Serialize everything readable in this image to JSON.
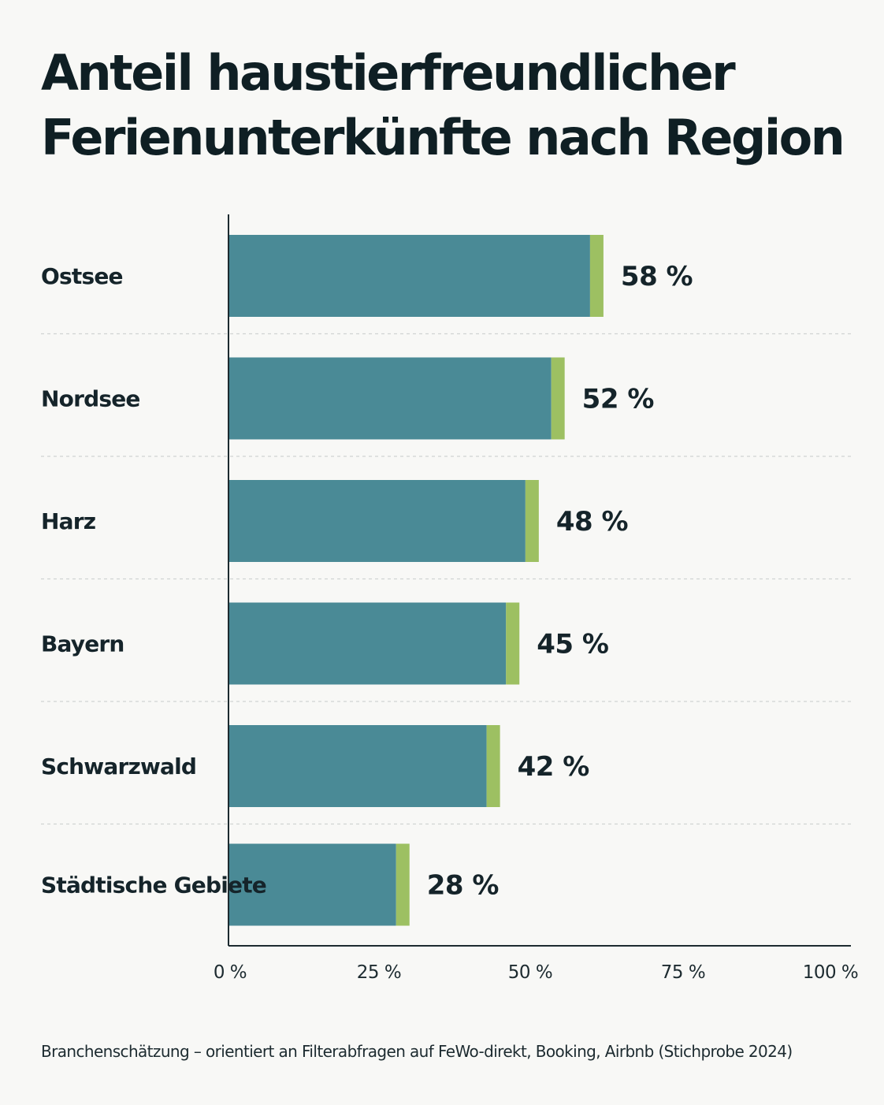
{
  "chart_data": {
    "type": "bar",
    "orientation": "horizontal",
    "title": "Anteil haustierfreundlicher Ferienunterkünfte nach Region",
    "categories": [
      "Ostsee",
      "Nordsee",
      "Harz",
      "Bayern",
      "Schwarzwald",
      "Städtische Gebiete"
    ],
    "values": [
      58,
      52,
      48,
      45,
      42,
      28
    ],
    "value_labels": [
      "58 %",
      "52 %",
      "48 %",
      "45 %",
      "42 %",
      "28 %"
    ],
    "xlim": [
      0,
      100
    ],
    "x_ticks": [
      0,
      25,
      50,
      75,
      100
    ],
    "x_tick_labels": [
      "0 %",
      "25 %",
      "50 %",
      "75 %",
      "100 %"
    ],
    "xlabel": "",
    "ylabel": "",
    "grid": false,
    "legend": "none",
    "colors": {
      "bar": "#4a8a96",
      "bar_cap": "#9dc062",
      "separator": "#d0d3d2",
      "axis": "#1d2b30"
    }
  },
  "footnote": "Branchenschätzung – orientiert an Filterabfragen auf FeWo-direkt, Booking, Airbnb (Stichprobe 2024)"
}
